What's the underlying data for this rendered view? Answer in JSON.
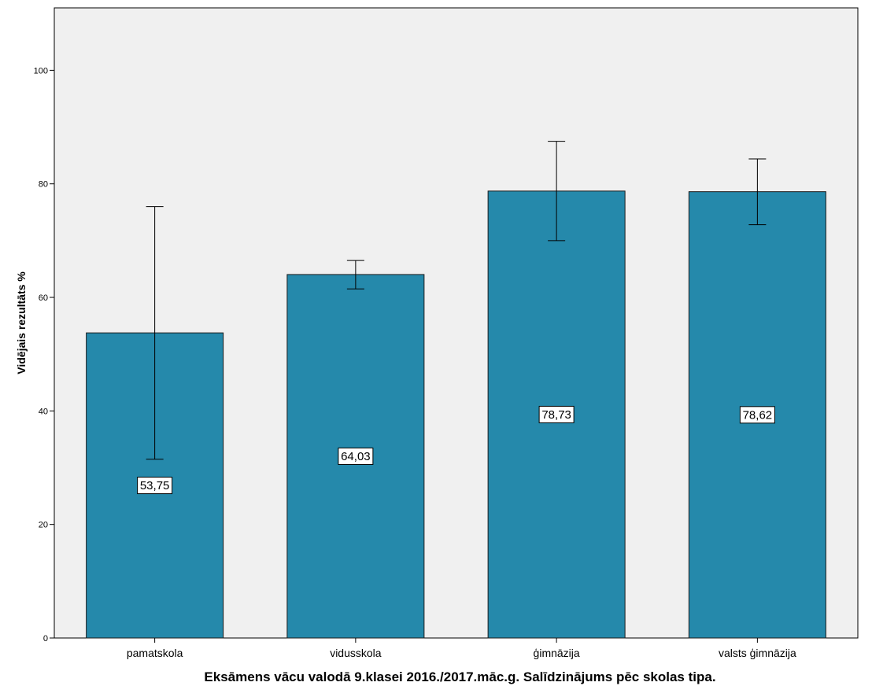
{
  "colors": {
    "plot_background": "#f0f0f0",
    "bar_fill": "#2589ab",
    "bar_stroke": "#1a1a1a",
    "axis": "#000000"
  },
  "chart_data": {
    "type": "bar",
    "categories": [
      "pamatskola",
      "vidusskola",
      "ģimnāzija",
      "valsts ģimnāzija"
    ],
    "values": [
      53.75,
      64.03,
      78.73,
      78.62
    ],
    "data_labels": [
      "53,75",
      "64,03",
      "78,73",
      "78,62"
    ],
    "error_bars": [
      {
        "low": 31.5,
        "high": 76.0
      },
      {
        "low": 61.5,
        "high": 66.5
      },
      {
        "low": 70.0,
        "high": 87.5
      },
      {
        "low": 72.8,
        "high": 84.4
      }
    ],
    "title": "",
    "xlabel": "Eksāmens vācu valodā 9.klasei 2016./2017.māc.g. Salīdzinājums pēc skolas tipa.",
    "ylabel": "Vidējais rezultāts %",
    "ylim": [
      0,
      111
    ],
    "yticks": [
      0,
      20,
      40,
      60,
      80,
      100
    ],
    "ytick_labels": [
      "0",
      "20",
      "40",
      "60",
      "80",
      "100"
    ],
    "grid": false,
    "legend": "none"
  }
}
